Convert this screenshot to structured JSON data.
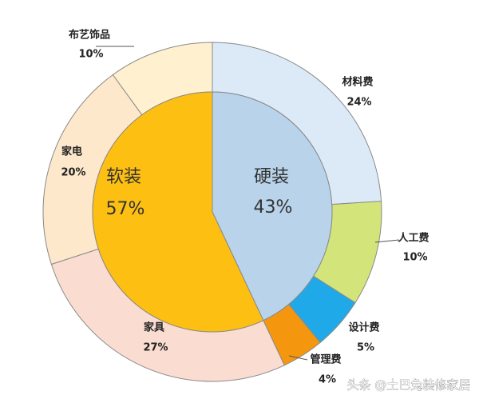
{
  "chart_data": {
    "type": "nested-pie",
    "inner": {
      "categories": [
        "硬装",
        "软装"
      ],
      "values": [
        43,
        57
      ],
      "value_labels": [
        "43%",
        "57%"
      ],
      "colors": [
        "#b8d3ea",
        "#fdbf12"
      ]
    },
    "outer": {
      "categories": [
        "材料费",
        "人工费",
        "设计费",
        "管理费",
        "家具",
        "家电",
        "布艺饰品"
      ],
      "values": [
        24,
        10,
        5,
        4,
        27,
        20,
        10
      ],
      "value_labels": [
        "24%",
        "10%",
        "5%",
        "4%",
        "27%",
        "20%",
        "10%"
      ],
      "colors": [
        "#dce9f6",
        "#d3e47a",
        "#1fa9e9",
        "#f5960f",
        "#fadcd1",
        "#fde8cb",
        "#fff1d0"
      ]
    },
    "watermark": "头条 @土巴兔装修家居"
  }
}
